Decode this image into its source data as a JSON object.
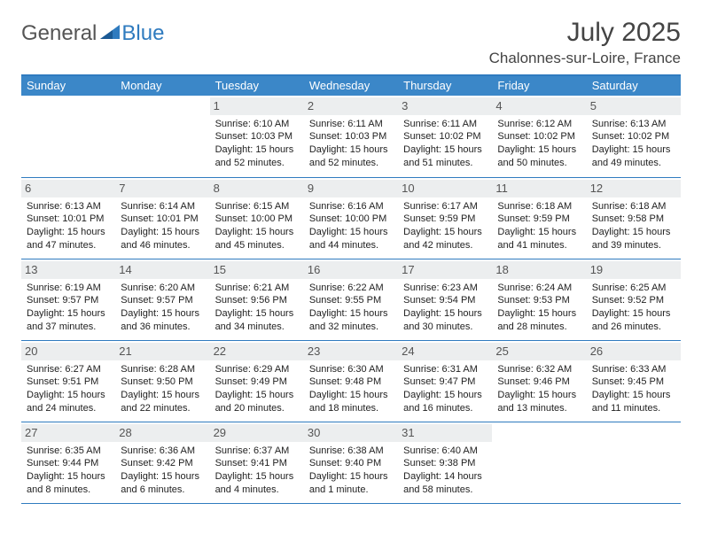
{
  "brand": {
    "part1": "General",
    "part2": "Blue"
  },
  "title": "July 2025",
  "location": "Chalonnes-sur-Loire, France",
  "colors": {
    "header_bg": "#3b87c8",
    "border": "#2f7bbf",
    "daynum_bg": "#eceeef",
    "text": "#222222",
    "brand_gray": "#555555",
    "brand_blue": "#2f7bbf"
  },
  "weekdays": [
    "Sunday",
    "Monday",
    "Tuesday",
    "Wednesday",
    "Thursday",
    "Friday",
    "Saturday"
  ],
  "weeks": [
    [
      {
        "day": "",
        "sunrise": "",
        "sunset": "",
        "daylight": ""
      },
      {
        "day": "",
        "sunrise": "",
        "sunset": "",
        "daylight": ""
      },
      {
        "day": "1",
        "sunrise": "Sunrise: 6:10 AM",
        "sunset": "Sunset: 10:03 PM",
        "daylight": "Daylight: 15 hours and 52 minutes."
      },
      {
        "day": "2",
        "sunrise": "Sunrise: 6:11 AM",
        "sunset": "Sunset: 10:03 PM",
        "daylight": "Daylight: 15 hours and 52 minutes."
      },
      {
        "day": "3",
        "sunrise": "Sunrise: 6:11 AM",
        "sunset": "Sunset: 10:02 PM",
        "daylight": "Daylight: 15 hours and 51 minutes."
      },
      {
        "day": "4",
        "sunrise": "Sunrise: 6:12 AM",
        "sunset": "Sunset: 10:02 PM",
        "daylight": "Daylight: 15 hours and 50 minutes."
      },
      {
        "day": "5",
        "sunrise": "Sunrise: 6:13 AM",
        "sunset": "Sunset: 10:02 PM",
        "daylight": "Daylight: 15 hours and 49 minutes."
      }
    ],
    [
      {
        "day": "6",
        "sunrise": "Sunrise: 6:13 AM",
        "sunset": "Sunset: 10:01 PM",
        "daylight": "Daylight: 15 hours and 47 minutes."
      },
      {
        "day": "7",
        "sunrise": "Sunrise: 6:14 AM",
        "sunset": "Sunset: 10:01 PM",
        "daylight": "Daylight: 15 hours and 46 minutes."
      },
      {
        "day": "8",
        "sunrise": "Sunrise: 6:15 AM",
        "sunset": "Sunset: 10:00 PM",
        "daylight": "Daylight: 15 hours and 45 minutes."
      },
      {
        "day": "9",
        "sunrise": "Sunrise: 6:16 AM",
        "sunset": "Sunset: 10:00 PM",
        "daylight": "Daylight: 15 hours and 44 minutes."
      },
      {
        "day": "10",
        "sunrise": "Sunrise: 6:17 AM",
        "sunset": "Sunset: 9:59 PM",
        "daylight": "Daylight: 15 hours and 42 minutes."
      },
      {
        "day": "11",
        "sunrise": "Sunrise: 6:18 AM",
        "sunset": "Sunset: 9:59 PM",
        "daylight": "Daylight: 15 hours and 41 minutes."
      },
      {
        "day": "12",
        "sunrise": "Sunrise: 6:18 AM",
        "sunset": "Sunset: 9:58 PM",
        "daylight": "Daylight: 15 hours and 39 minutes."
      }
    ],
    [
      {
        "day": "13",
        "sunrise": "Sunrise: 6:19 AM",
        "sunset": "Sunset: 9:57 PM",
        "daylight": "Daylight: 15 hours and 37 minutes."
      },
      {
        "day": "14",
        "sunrise": "Sunrise: 6:20 AM",
        "sunset": "Sunset: 9:57 PM",
        "daylight": "Daylight: 15 hours and 36 minutes."
      },
      {
        "day": "15",
        "sunrise": "Sunrise: 6:21 AM",
        "sunset": "Sunset: 9:56 PM",
        "daylight": "Daylight: 15 hours and 34 minutes."
      },
      {
        "day": "16",
        "sunrise": "Sunrise: 6:22 AM",
        "sunset": "Sunset: 9:55 PM",
        "daylight": "Daylight: 15 hours and 32 minutes."
      },
      {
        "day": "17",
        "sunrise": "Sunrise: 6:23 AM",
        "sunset": "Sunset: 9:54 PM",
        "daylight": "Daylight: 15 hours and 30 minutes."
      },
      {
        "day": "18",
        "sunrise": "Sunrise: 6:24 AM",
        "sunset": "Sunset: 9:53 PM",
        "daylight": "Daylight: 15 hours and 28 minutes."
      },
      {
        "day": "19",
        "sunrise": "Sunrise: 6:25 AM",
        "sunset": "Sunset: 9:52 PM",
        "daylight": "Daylight: 15 hours and 26 minutes."
      }
    ],
    [
      {
        "day": "20",
        "sunrise": "Sunrise: 6:27 AM",
        "sunset": "Sunset: 9:51 PM",
        "daylight": "Daylight: 15 hours and 24 minutes."
      },
      {
        "day": "21",
        "sunrise": "Sunrise: 6:28 AM",
        "sunset": "Sunset: 9:50 PM",
        "daylight": "Daylight: 15 hours and 22 minutes."
      },
      {
        "day": "22",
        "sunrise": "Sunrise: 6:29 AM",
        "sunset": "Sunset: 9:49 PM",
        "daylight": "Daylight: 15 hours and 20 minutes."
      },
      {
        "day": "23",
        "sunrise": "Sunrise: 6:30 AM",
        "sunset": "Sunset: 9:48 PM",
        "daylight": "Daylight: 15 hours and 18 minutes."
      },
      {
        "day": "24",
        "sunrise": "Sunrise: 6:31 AM",
        "sunset": "Sunset: 9:47 PM",
        "daylight": "Daylight: 15 hours and 16 minutes."
      },
      {
        "day": "25",
        "sunrise": "Sunrise: 6:32 AM",
        "sunset": "Sunset: 9:46 PM",
        "daylight": "Daylight: 15 hours and 13 minutes."
      },
      {
        "day": "26",
        "sunrise": "Sunrise: 6:33 AM",
        "sunset": "Sunset: 9:45 PM",
        "daylight": "Daylight: 15 hours and 11 minutes."
      }
    ],
    [
      {
        "day": "27",
        "sunrise": "Sunrise: 6:35 AM",
        "sunset": "Sunset: 9:44 PM",
        "daylight": "Daylight: 15 hours and 8 minutes."
      },
      {
        "day": "28",
        "sunrise": "Sunrise: 6:36 AM",
        "sunset": "Sunset: 9:42 PM",
        "daylight": "Daylight: 15 hours and 6 minutes."
      },
      {
        "day": "29",
        "sunrise": "Sunrise: 6:37 AM",
        "sunset": "Sunset: 9:41 PM",
        "daylight": "Daylight: 15 hours and 4 minutes."
      },
      {
        "day": "30",
        "sunrise": "Sunrise: 6:38 AM",
        "sunset": "Sunset: 9:40 PM",
        "daylight": "Daylight: 15 hours and 1 minute."
      },
      {
        "day": "31",
        "sunrise": "Sunrise: 6:40 AM",
        "sunset": "Sunset: 9:38 PM",
        "daylight": "Daylight: 14 hours and 58 minutes."
      },
      {
        "day": "",
        "sunrise": "",
        "sunset": "",
        "daylight": ""
      },
      {
        "day": "",
        "sunrise": "",
        "sunset": "",
        "daylight": ""
      }
    ]
  ]
}
